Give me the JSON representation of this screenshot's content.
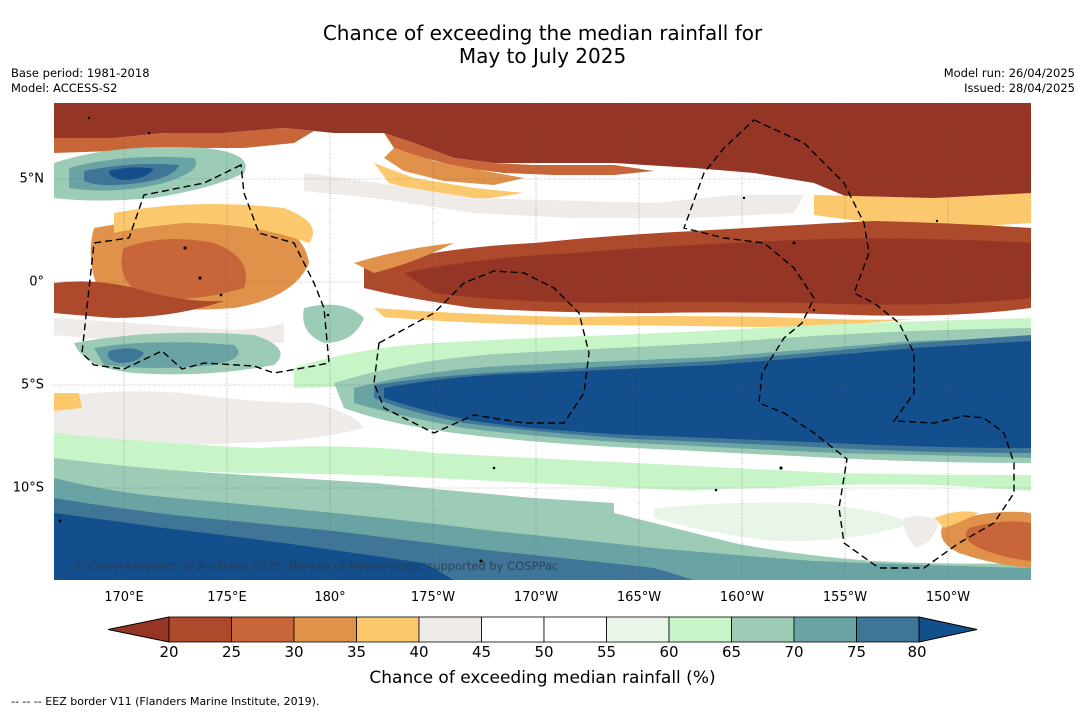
{
  "title": {
    "line1": "Chance of exceeding the median rainfall for",
    "line2": "May to July 2025"
  },
  "meta": {
    "base_period": "Base period: 1981-2018",
    "model": "Model: ACCESS-S2",
    "model_run": "Model run: 26/04/2025",
    "issued": "Issued: 28/04/2025"
  },
  "map": {
    "lat_ticks": [
      {
        "value": 5,
        "label": "5°N"
      },
      {
        "value": 0,
        "label": "0°"
      },
      {
        "value": -5,
        "label": "5°S"
      },
      {
        "value": -10,
        "label": "10°S"
      }
    ],
    "lon_ticks": [
      {
        "value": 170,
        "label": "170°E"
      },
      {
        "value": 175,
        "label": "175°E"
      },
      {
        "value": 180,
        "label": "180°"
      },
      {
        "value": 185,
        "label": "175°W"
      },
      {
        "value": 190,
        "label": "170°W"
      },
      {
        "value": 195,
        "label": "165°W"
      },
      {
        "value": 200,
        "label": "160°W"
      },
      {
        "value": 205,
        "label": "155°W"
      },
      {
        "value": 210,
        "label": "150°W"
      }
    ],
    "lon_range": [
      165.7,
      213.1
    ],
    "lat_range": [
      -14.5,
      8.4
    ],
    "copyright": "© Commonwealth of Australia 2025, Bureau of Meteorology, supported by COSPPac"
  },
  "colorbar": {
    "label": "Chance of exceeding median rainfall (%)",
    "ticks": [
      "20",
      "25",
      "30",
      "35",
      "40",
      "45",
      "50",
      "55",
      "60",
      "65",
      "70",
      "75",
      "80"
    ],
    "low_extend_color": "#943526",
    "high_extend_color": "#124f8c",
    "colors": [
      "#ad4a2b",
      "#c8663a",
      "#e0924a",
      "#fcc86e",
      "#efebe8",
      "#ffffff",
      "#ffffff",
      "#e9f5e9",
      "#c8f5c8",
      "#9ccbb6",
      "#6aa3a3",
      "#3f7597"
    ]
  },
  "legend_note": "-- -- -- EEZ border V11 (Flanders Marine Institute, 2019)."
}
